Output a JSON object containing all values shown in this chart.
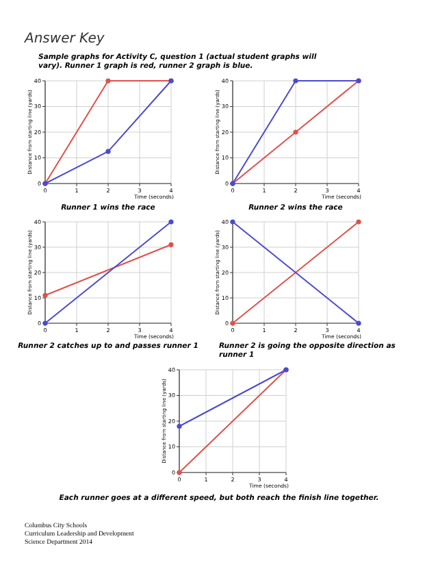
{
  "chart_data": [
    {
      "type": "line",
      "title": "Answer Key",
      "subtitle": "Sample graphs for Activity C, question 1 (actual student graphs will vary). Runner 1 graph is red, runner 2 graph is blue.",
      "xlabel": "Time (seconds)",
      "ylabel": "Distance from starting line (yards)",
      "xlim": [
        0,
        4
      ],
      "ylim": [
        0,
        40
      ],
      "xticks": [
        0,
        1,
        2,
        3,
        4
      ],
      "yticks": [
        0,
        10,
        20,
        30,
        40
      ],
      "grid": true,
      "marker": "circle",
      "annotations": [
        "Runner 1 wins the race"
      ],
      "series": [
        {
          "color": "#e0504a",
          "x": [
            0,
            2,
            4
          ],
          "values": [
            0,
            40,
            40
          ]
        },
        {
          "color": "#4a4ad0",
          "x": [
            0,
            2,
            4
          ],
          "values": [
            0,
            12.5,
            40
          ]
        }
      ]
    },
    {
      "type": "line",
      "xlabel": "Time (seconds)",
      "ylabel": "Distance from starting line (yards)",
      "xlim": [
        0,
        4
      ],
      "ylim": [
        0,
        40
      ],
      "xticks": [
        0,
        1,
        2,
        3,
        4
      ],
      "yticks": [
        0,
        10,
        20,
        30,
        40
      ],
      "grid": true,
      "marker": "circle",
      "annotations": [
        "Runner 2 wins the race"
      ],
      "series": [
        {
          "color": "#e0504a",
          "x": [
            0,
            2,
            4
          ],
          "values": [
            0,
            20,
            40
          ]
        },
        {
          "color": "#4a4ad0",
          "x": [
            0,
            2,
            4
          ],
          "values": [
            0,
            40,
            40
          ]
        }
      ]
    },
    {
      "type": "line",
      "xlabel": "Time (seconds)",
      "ylabel": "Distance from starting line (yards)",
      "xlim": [
        0,
        4
      ],
      "ylim": [
        0,
        40
      ],
      "xticks": [
        0,
        1,
        2,
        3,
        4
      ],
      "yticks": [
        0,
        10,
        20,
        30,
        40
      ],
      "grid": true,
      "marker": "circle",
      "annotations": [
        "Runner 2 catches up to and passes runner 1"
      ],
      "series": [
        {
          "color": "#e0504a",
          "x": [
            0,
            4
          ],
          "values": [
            11,
            31
          ]
        },
        {
          "color": "#4a4ad0",
          "x": [
            0,
            4
          ],
          "values": [
            0,
            40
          ]
        }
      ]
    },
    {
      "type": "line",
      "xlabel": "Time (seconds)",
      "ylabel": "Distance from starting line (yards)",
      "xlim": [
        0,
        4
      ],
      "ylim": [
        0,
        40
      ],
      "xticks": [
        0,
        1,
        2,
        3,
        4
      ],
      "yticks": [
        0,
        10,
        20,
        30,
        40
      ],
      "grid": true,
      "marker": "circle",
      "annotations": [
        "Runner 2 is going the opposite direction as runner 1"
      ],
      "series": [
        {
          "color": "#e0504a",
          "x": [
            0,
            4
          ],
          "values": [
            0,
            40
          ]
        },
        {
          "color": "#4a4ad0",
          "x": [
            0,
            4
          ],
          "values": [
            40,
            0
          ]
        }
      ]
    },
    {
      "type": "line",
      "xlabel": "Time (seconds)",
      "ylabel": "Distance from starting line (yards)",
      "xlim": [
        0,
        4
      ],
      "ylim": [
        0,
        40
      ],
      "xticks": [
        0,
        1,
        2,
        3,
        4
      ],
      "yticks": [
        0,
        10,
        20,
        30,
        40
      ],
      "grid": true,
      "marker": "circle",
      "annotations": [
        "Each runner goes at a different speed, but both reach the finish line together.",
        "Columbus City Schools",
        "Curriculum Leadership and Development",
        "Science Department 2014"
      ],
      "series": [
        {
          "color": "#e0504a",
          "x": [
            0,
            4
          ],
          "values": [
            0,
            40
          ]
        },
        {
          "color": "#4a4ad0",
          "x": [
            0,
            4
          ],
          "values": [
            18,
            40
          ]
        }
      ]
    }
  ]
}
